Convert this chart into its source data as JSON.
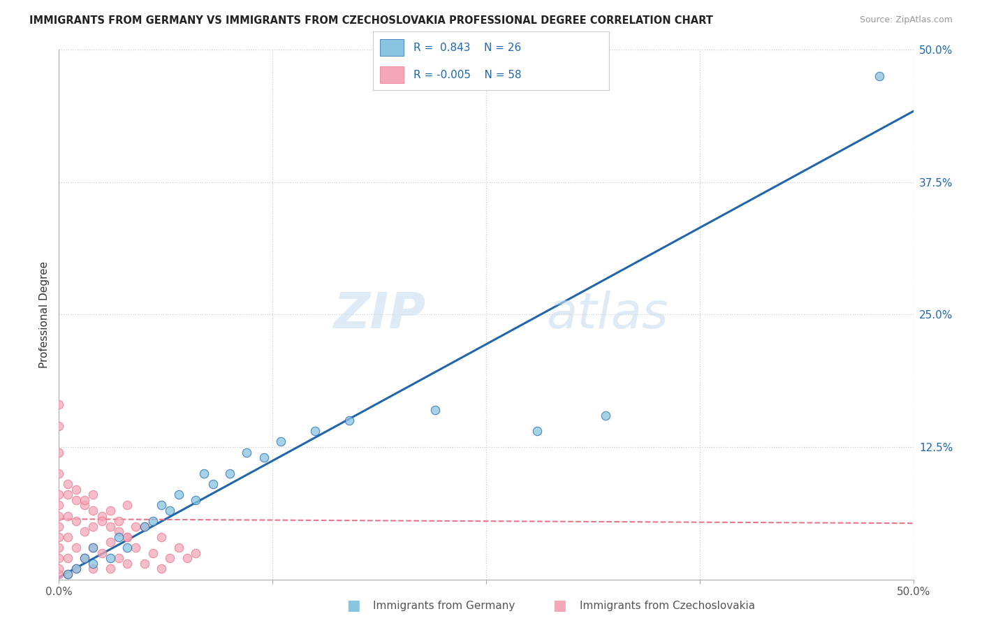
{
  "title": "IMMIGRANTS FROM GERMANY VS IMMIGRANTS FROM CZECHOSLOVAKIA PROFESSIONAL DEGREE CORRELATION CHART",
  "source": "Source: ZipAtlas.com",
  "ylabel": "Professional Degree",
  "xlim": [
    0.0,
    0.5
  ],
  "ylim": [
    0.0,
    0.5
  ],
  "color_blue": "#89c4e1",
  "color_pink": "#f4a7b9",
  "line_blue": "#2166ac",
  "line_pink": "#e8768a",
  "watermark_zip": "ZIP",
  "watermark_atlas": "atlas",
  "germany_x": [
    0.005,
    0.01,
    0.015,
    0.02,
    0.02,
    0.03,
    0.035,
    0.04,
    0.05,
    0.055,
    0.06,
    0.065,
    0.07,
    0.08,
    0.085,
    0.09,
    0.1,
    0.11,
    0.12,
    0.13,
    0.15,
    0.17,
    0.22,
    0.28,
    0.32,
    0.48
  ],
  "germany_y": [
    0.005,
    0.01,
    0.02,
    0.015,
    0.03,
    0.02,
    0.04,
    0.03,
    0.05,
    0.055,
    0.07,
    0.065,
    0.08,
    0.075,
    0.1,
    0.09,
    0.1,
    0.12,
    0.115,
    0.13,
    0.14,
    0.15,
    0.16,
    0.14,
    0.155,
    0.475
  ],
  "blue_slope": 0.88,
  "blue_intercept": 0.002,
  "pink_slope": -0.008,
  "pink_intercept": 0.057,
  "czech_x": [
    0.0,
    0.0,
    0.0,
    0.0,
    0.0,
    0.0,
    0.0,
    0.0,
    0.0,
    0.0,
    0.005,
    0.005,
    0.005,
    0.005,
    0.005,
    0.01,
    0.01,
    0.01,
    0.01,
    0.015,
    0.015,
    0.015,
    0.02,
    0.02,
    0.02,
    0.02,
    0.025,
    0.025,
    0.03,
    0.03,
    0.03,
    0.035,
    0.035,
    0.04,
    0.04,
    0.04,
    0.045,
    0.05,
    0.05,
    0.055,
    0.06,
    0.06,
    0.065,
    0.07,
    0.075,
    0.08,
    0.0,
    0.0,
    0.0,
    0.005,
    0.01,
    0.015,
    0.02,
    0.025,
    0.03,
    0.035,
    0.04,
    0.045
  ],
  "czech_y": [
    0.005,
    0.01,
    0.02,
    0.03,
    0.04,
    0.05,
    0.06,
    0.07,
    0.08,
    0.1,
    0.005,
    0.02,
    0.04,
    0.06,
    0.08,
    0.01,
    0.03,
    0.055,
    0.075,
    0.02,
    0.045,
    0.07,
    0.01,
    0.03,
    0.05,
    0.08,
    0.025,
    0.06,
    0.01,
    0.035,
    0.065,
    0.02,
    0.055,
    0.015,
    0.04,
    0.07,
    0.03,
    0.015,
    0.05,
    0.025,
    0.01,
    0.04,
    0.02,
    0.03,
    0.02,
    0.025,
    0.12,
    0.145,
    0.165,
    0.09,
    0.085,
    0.075,
    0.065,
    0.055,
    0.05,
    0.045,
    0.04,
    0.05
  ]
}
